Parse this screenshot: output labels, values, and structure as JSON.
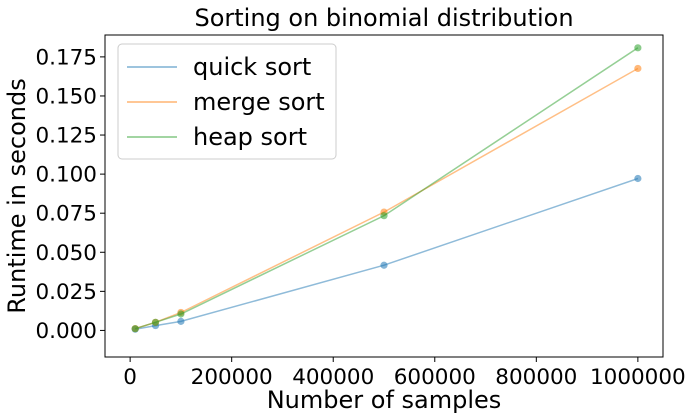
{
  "chart_data": {
    "type": "line",
    "title": "Sorting on binomial distribution",
    "xlabel": "Number of samples",
    "ylabel": "Runtime in seconds",
    "x": [
      10000,
      50000,
      100000,
      500000,
      1000000
    ],
    "xlim": [
      -49500,
      1049500
    ],
    "ylim": [
      -0.017,
      0.189
    ],
    "xticks": [
      0,
      200000,
      400000,
      600000,
      800000,
      1000000
    ],
    "xtick_labels": [
      "0",
      "200000",
      "400000",
      "600000",
      "800000",
      "1000000"
    ],
    "yticks": [
      0.0,
      0.025,
      0.05,
      0.075,
      0.1,
      0.125,
      0.15,
      0.175
    ],
    "ytick_labels": [
      "0.000",
      "0.025",
      "0.050",
      "0.075",
      "0.100",
      "0.125",
      "0.150",
      "0.175"
    ],
    "grid": false,
    "legend_position": "top-left",
    "series": [
      {
        "name": "quick sort",
        "color": "#1f77b4",
        "values": [
          0.0008,
          0.0031,
          0.0058,
          0.0417,
          0.0972
        ]
      },
      {
        "name": "merge sort",
        "color": "#ff7f0e",
        "values": [
          0.0012,
          0.0052,
          0.0115,
          0.0757,
          0.1676
        ]
      },
      {
        "name": "heap sort",
        "color": "#2ca02c",
        "values": [
          0.0011,
          0.0052,
          0.0105,
          0.0734,
          0.1808
        ]
      }
    ]
  }
}
